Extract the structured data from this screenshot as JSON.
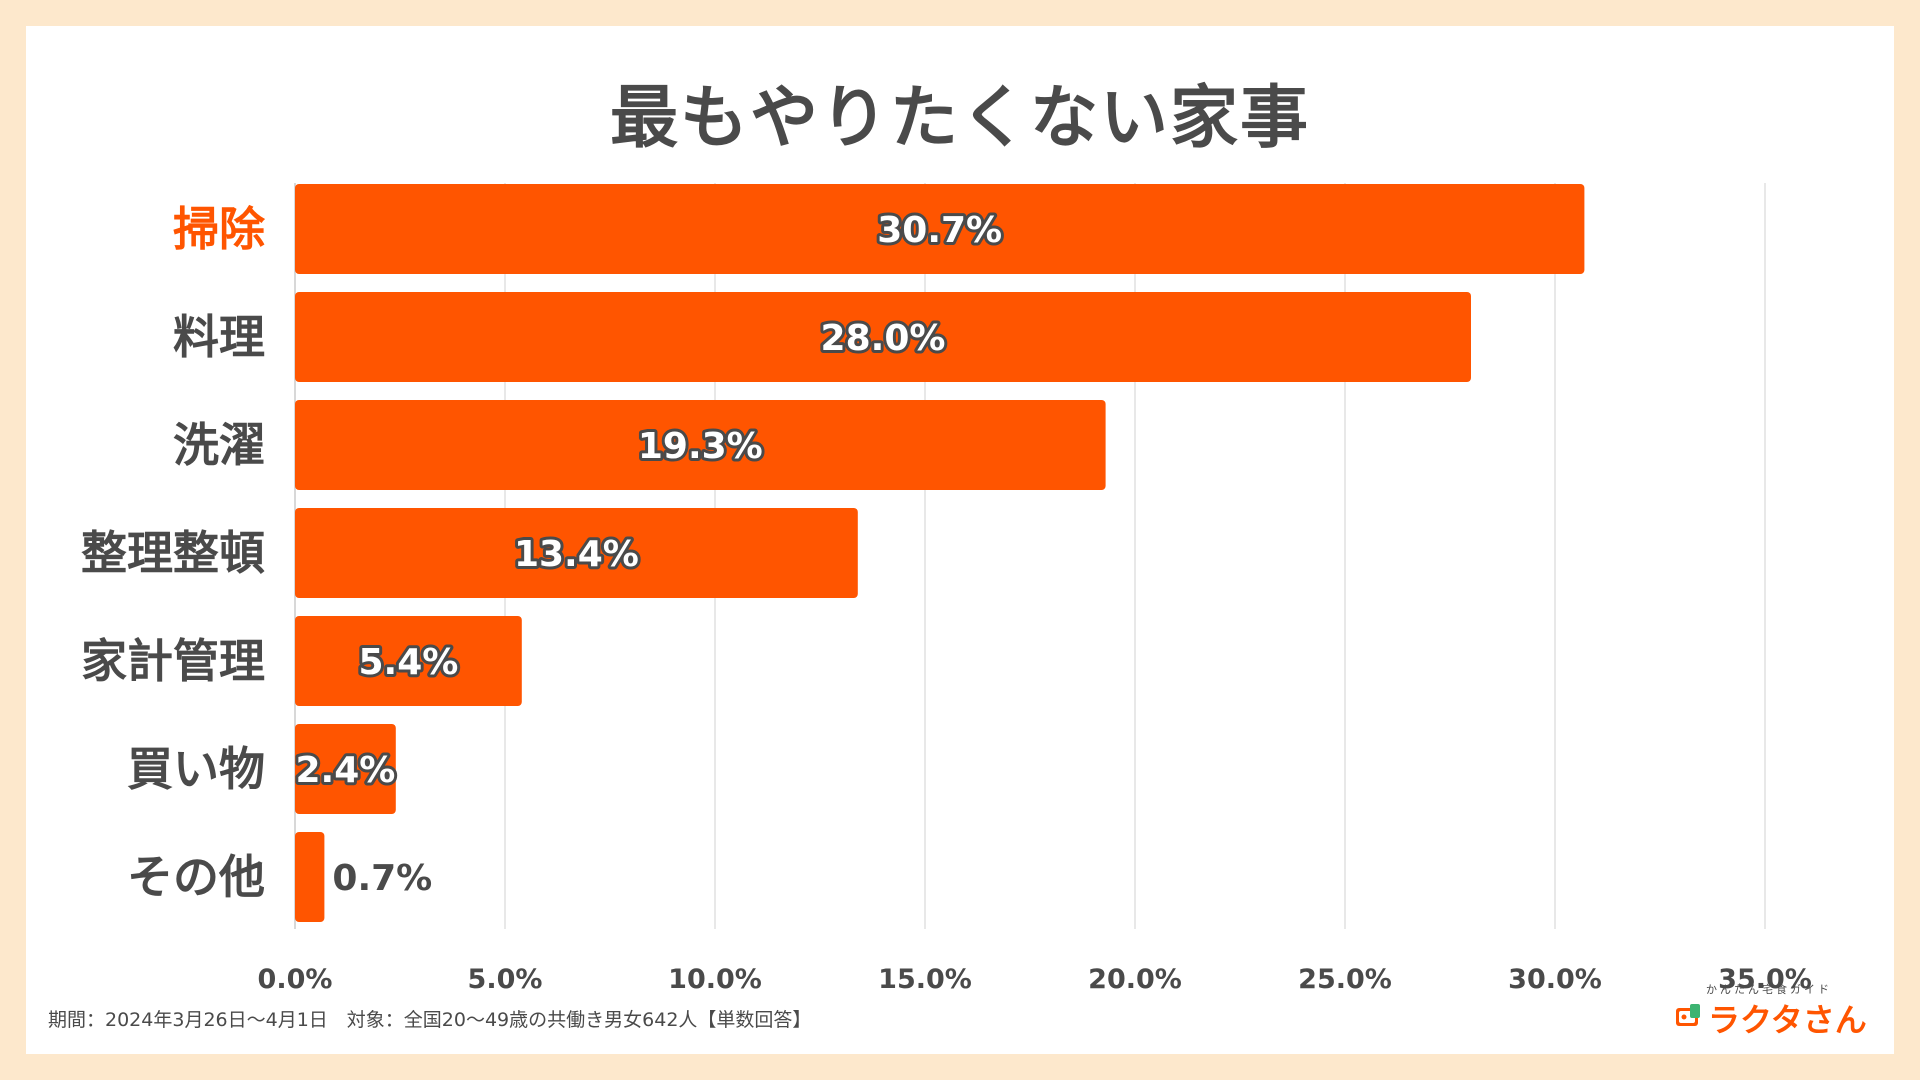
{
  "chart_data": {
    "type": "bar",
    "orientation": "horizontal",
    "title": "最もやりたくない家事",
    "categories": [
      "掃除",
      "料理",
      "洗濯",
      "整理整頓",
      "家計管理",
      "買い物",
      "その他"
    ],
    "values": [
      30.7,
      28.0,
      19.3,
      13.4,
      5.4,
      2.4,
      0.7
    ],
    "value_labels": [
      "30.7%",
      "28.0%",
      "19.3%",
      "13.4%",
      "5.4%",
      "2.4%",
      "0.7%"
    ],
    "highlight_category": "掃除",
    "xlim": [
      0,
      35
    ],
    "xticks": [
      0,
      5,
      10,
      15,
      20,
      25,
      30,
      35
    ],
    "xtick_labels": [
      "0.0%",
      "5.0%",
      "10.0%",
      "15.0%",
      "20.0%",
      "25.0%",
      "30.0%",
      "35.0%"
    ],
    "grid": true,
    "colors": {
      "bar": "#ff5500",
      "highlight_label": "#ff5500",
      "label": "#4a4a4a",
      "grid": "#e0e0e0"
    }
  },
  "footnote": "期間：2024年3月26日〜4月1日　対象：全国20〜49歳の共働き男女642人【単数回答】",
  "logo": {
    "subtitle": "かんたん宅食ガイド",
    "name": "ラクタさん",
    "icon": "lunchbox-icon"
  }
}
